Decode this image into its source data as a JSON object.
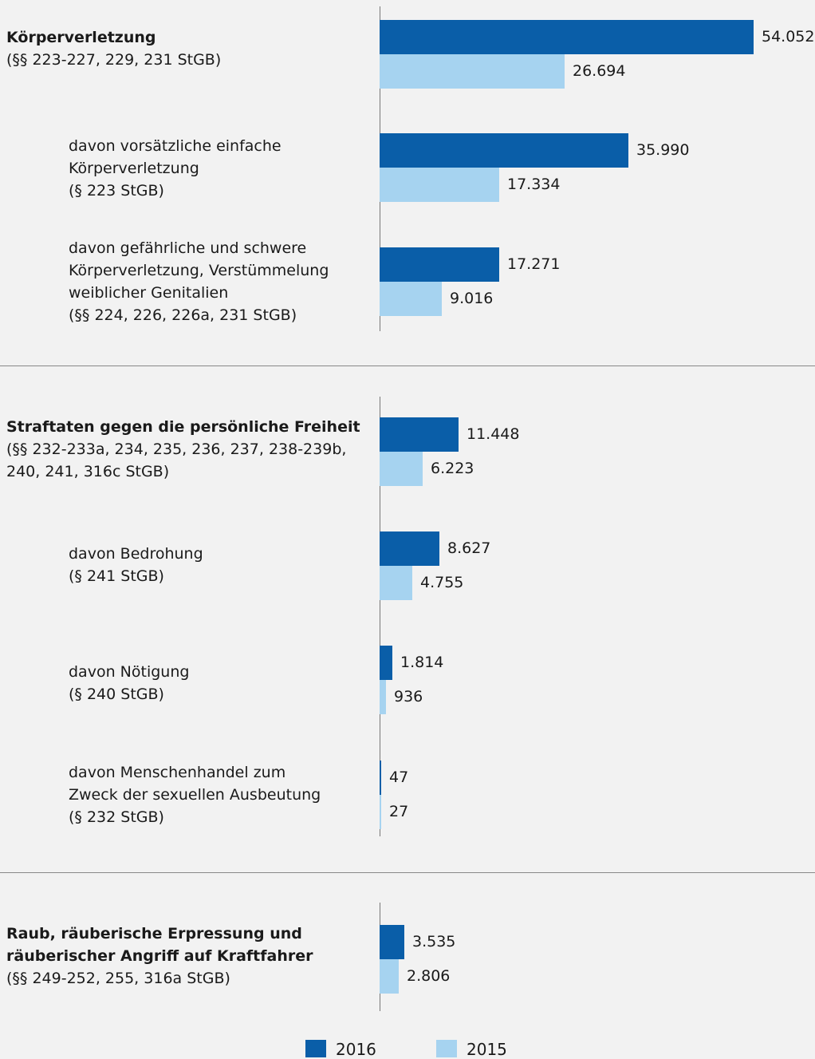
{
  "colors": {
    "y2016": "#0a5ea8",
    "y2015": "#a6d3f0"
  },
  "legend": {
    "label_2016": "2016",
    "label_2015": "2015"
  },
  "chart_data": {
    "type": "bar",
    "orientation": "horizontal",
    "series_names": [
      "2016",
      "2015"
    ],
    "groups": [
      {
        "rows": [
          {
            "title": "Körperverletzung",
            "lines": [
              "(§§ 223-227, 229, 231 StGB)"
            ],
            "bold": true,
            "values": [
              54052,
              26694
            ],
            "labels": [
              "54.052",
              "26.694"
            ]
          },
          {
            "title": "",
            "lines": [
              "davon vorsätzliche einfache",
              "Körperverletzung",
              "(§ 223 StGB)"
            ],
            "bold": false,
            "values": [
              35990,
              17334
            ],
            "labels": [
              "35.990",
              "17.334"
            ]
          },
          {
            "title": "",
            "lines": [
              "davon gefährliche und schwere",
              "Körperverletzung, Verstümmelung",
              "weiblicher Genitalien",
              "(§§ 224, 226, 226a, 231 StGB)"
            ],
            "bold": false,
            "values": [
              17271,
              9016
            ],
            "labels": [
              "17.271",
              "9.016"
            ]
          }
        ]
      },
      {
        "rows": [
          {
            "title": "Straftaten gegen die persönliche Freiheit",
            "lines": [
              "(§§ 232-233a, 234, 235, 236, 237, 238-239b,",
              "240, 241, 316c StGB)"
            ],
            "bold": true,
            "values": [
              11448,
              6223
            ],
            "labels": [
              "11.448",
              "6.223"
            ]
          },
          {
            "title": "",
            "lines": [
              "davon Bedrohung",
              "(§ 241 StGB)"
            ],
            "bold": false,
            "values": [
              8627,
              4755
            ],
            "labels": [
              "8.627",
              "4.755"
            ]
          },
          {
            "title": "",
            "lines": [
              "davon Nötigung",
              "(§ 240 StGB)"
            ],
            "bold": false,
            "values": [
              1814,
              936
            ],
            "labels": [
              "1.814",
              "936"
            ]
          },
          {
            "title": "",
            "lines": [
              "davon Menschenhandel zum",
              "Zweck der sexuellen Ausbeutung",
              "(§ 232 StGB)"
            ],
            "bold": false,
            "values": [
              47,
              27
            ],
            "labels": [
              "47",
              "27"
            ]
          }
        ]
      },
      {
        "rows": [
          {
            "title": "Raub, räuberische Erpressung und",
            "title2": "räuberischer Angriff auf Kraftfahrer",
            "lines": [
              "(§§ 249-252, 255, 316a StGB)"
            ],
            "bold": true,
            "values": [
              3535,
              2806
            ],
            "labels": [
              "3.535",
              "2.806"
            ]
          }
        ]
      }
    ]
  }
}
